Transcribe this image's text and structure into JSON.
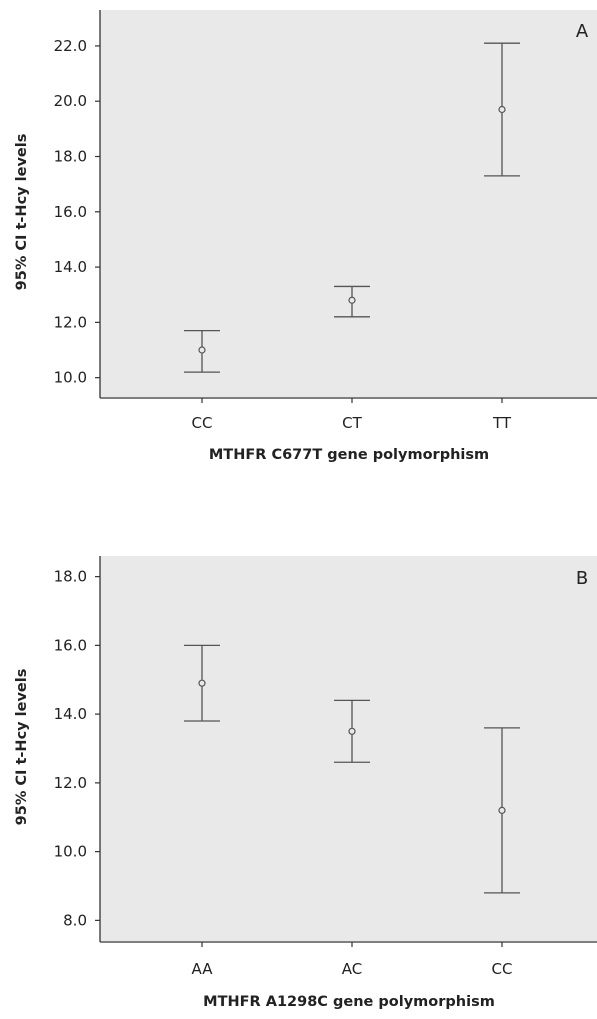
{
  "chart_data": [
    {
      "type": "errorbar",
      "panel_label": "A",
      "xlabel": "MTHFR C677T gene polymorphism",
      "ylabel": "95% CI t-Hcy levels",
      "categories": [
        "CC",
        "CT",
        "TT"
      ],
      "series": [
        {
          "values": [
            11.0,
            12.8,
            19.7
          ],
          "lower": [
            10.2,
            12.2,
            17.3
          ],
          "upper": [
            11.7,
            13.3,
            22.1
          ]
        }
      ],
      "yticks": [
        "10.0",
        "12.0",
        "14.0",
        "16.0",
        "18.0",
        "20.0",
        "22.0"
      ],
      "ylim": [
        9.3,
        23.3
      ],
      "grid": false,
      "background": "#e9e9e9"
    },
    {
      "type": "errorbar",
      "panel_label": "B",
      "xlabel": "MTHFR A1298C gene polymorphism",
      "ylabel": "95% CI t-Hcy levels",
      "categories": [
        "AA",
        "AC",
        "CC"
      ],
      "series": [
        {
          "values": [
            14.9,
            13.5,
            11.2
          ],
          "lower": [
            13.8,
            12.6,
            8.8
          ],
          "upper": [
            16.0,
            14.4,
            13.6
          ]
        }
      ],
      "yticks": [
        "8.0",
        "10.0",
        "12.0",
        "14.0",
        "16.0",
        "18.0"
      ],
      "ylim": [
        7.4,
        18.6
      ],
      "grid": false,
      "background": "#e9e9e9"
    }
  ]
}
